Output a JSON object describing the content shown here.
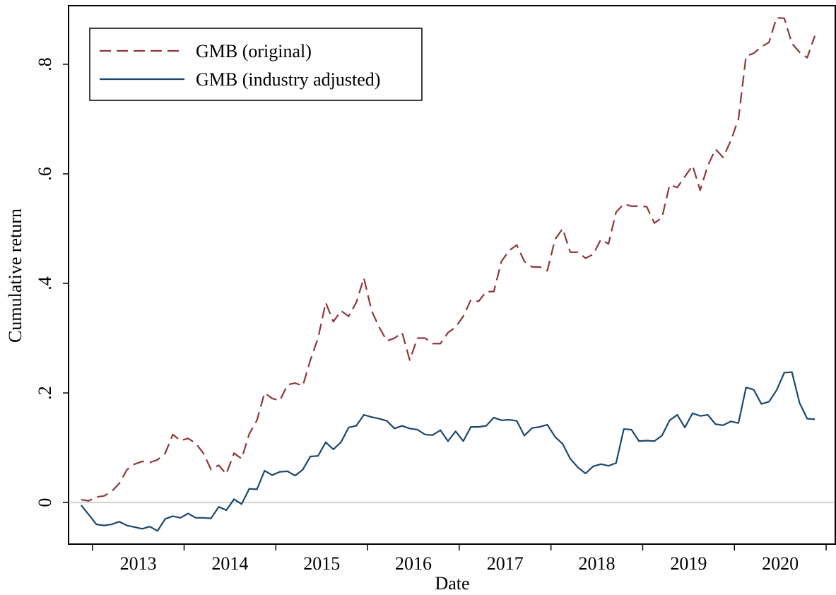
{
  "chart_data": {
    "type": "line",
    "xlabel": "Date",
    "ylabel": "Cumulative return",
    "x": [
      2012.877,
      2012.96,
      2013.044,
      2013.127,
      2013.21,
      2013.294,
      2013.377,
      2013.46,
      2013.544,
      2013.627,
      2013.71,
      2013.794,
      2013.877,
      2013.96,
      2014.044,
      2014.127,
      2014.21,
      2014.294,
      2014.377,
      2014.46,
      2014.544,
      2014.627,
      2014.71,
      2014.794,
      2014.877,
      2014.96,
      2015.044,
      2015.127,
      2015.21,
      2015.294,
      2015.377,
      2015.46,
      2015.544,
      2015.627,
      2015.71,
      2015.794,
      2015.877,
      2015.96,
      2016.044,
      2016.127,
      2016.21,
      2016.294,
      2016.377,
      2016.46,
      2016.544,
      2016.627,
      2016.71,
      2016.794,
      2016.877,
      2016.96,
      2017.044,
      2017.127,
      2017.21,
      2017.294,
      2017.377,
      2017.46,
      2017.544,
      2017.627,
      2017.71,
      2017.794,
      2017.877,
      2017.96,
      2018.044,
      2018.127,
      2018.21,
      2018.294,
      2018.377,
      2018.46,
      2018.544,
      2018.627,
      2018.71,
      2018.794,
      2018.877,
      2018.96,
      2019.044,
      2019.127,
      2019.21,
      2019.294,
      2019.377,
      2019.46,
      2019.544,
      2019.627,
      2019.71,
      2019.794,
      2019.877,
      2019.96,
      2020.044,
      2020.127,
      2020.21,
      2020.294,
      2020.377,
      2020.46,
      2020.544,
      2020.627,
      2020.71,
      2020.794,
      2020.877
    ],
    "series": [
      {
        "name": "GMB (original)",
        "color": "#90353b",
        "dash": true,
        "values": [
          0.005,
          0.003,
          0.01,
          0.012,
          0.02,
          0.035,
          0.06,
          0.07,
          0.075,
          0.073,
          0.078,
          0.09,
          0.124,
          0.113,
          0.117,
          0.108,
          0.09,
          0.06,
          0.068,
          0.052,
          0.09,
          0.08,
          0.125,
          0.15,
          0.2,
          0.19,
          0.186,
          0.215,
          0.218,
          0.213,
          0.26,
          0.3,
          0.365,
          0.33,
          0.35,
          0.34,
          0.365,
          0.41,
          0.35,
          0.32,
          0.295,
          0.3,
          0.31,
          0.26,
          0.3,
          0.3,
          0.29,
          0.29,
          0.31,
          0.32,
          0.34,
          0.37,
          0.367,
          0.385,
          0.385,
          0.44,
          0.46,
          0.47,
          0.44,
          0.43,
          0.43,
          0.423,
          0.48,
          0.5,
          0.457,
          0.457,
          0.446,
          0.453,
          0.48,
          0.472,
          0.53,
          0.545,
          0.541,
          0.541,
          0.54,
          0.51,
          0.52,
          0.58,
          0.575,
          0.595,
          0.615,
          0.57,
          0.615,
          0.645,
          0.63,
          0.66,
          0.7,
          0.815,
          0.82,
          0.832,
          0.84,
          0.885,
          0.884,
          0.838,
          0.822,
          0.812,
          0.852
        ]
      },
      {
        "name": "GMB (industry adjusted)",
        "color": "#1a476f",
        "dash": false,
        "values": [
          -0.005,
          -0.022,
          -0.04,
          -0.042,
          -0.04,
          -0.035,
          -0.042,
          -0.045,
          -0.048,
          -0.044,
          -0.052,
          -0.03,
          -0.025,
          -0.028,
          -0.02,
          -0.028,
          -0.028,
          -0.029,
          -0.008,
          -0.014,
          0.006,
          -0.003,
          0.025,
          0.024,
          0.058,
          0.05,
          0.056,
          0.057,
          0.049,
          0.06,
          0.084,
          0.085,
          0.11,
          0.097,
          0.11,
          0.137,
          0.14,
          0.16,
          0.156,
          0.153,
          0.149,
          0.135,
          0.14,
          0.135,
          0.133,
          0.124,
          0.123,
          0.132,
          0.112,
          0.13,
          0.112,
          0.138,
          0.138,
          0.14,
          0.155,
          0.15,
          0.151,
          0.149,
          0.122,
          0.136,
          0.138,
          0.142,
          0.12,
          0.107,
          0.08,
          0.064,
          0.053,
          0.066,
          0.07,
          0.067,
          0.072,
          0.134,
          0.133,
          0.112,
          0.113,
          0.112,
          0.122,
          0.15,
          0.16,
          0.137,
          0.163,
          0.158,
          0.16,
          0.143,
          0.141,
          0.148,
          0.145,
          0.21,
          0.206,
          0.18,
          0.184,
          0.205,
          0.237,
          0.238,
          0.182,
          0.153,
          0.152
        ]
      }
    ],
    "xlim": [
      2012.74,
      2021.1
    ],
    "xtick_marks": [
      2013,
      2014,
      2015,
      2016,
      2017,
      2018,
      2019,
      2020,
      2021
    ],
    "xticks": [
      {
        "value": 2013.5,
        "label": "2013"
      },
      {
        "value": 2014.5,
        "label": "2014"
      },
      {
        "value": 2015.5,
        "label": "2015"
      },
      {
        "value": 2016.5,
        "label": "2016"
      },
      {
        "value": 2017.5,
        "label": "2017"
      },
      {
        "value": 2018.5,
        "label": "2018"
      },
      {
        "value": 2019.5,
        "label": "2019"
      },
      {
        "value": 2020.5,
        "label": "2020"
      }
    ],
    "ylim": [
      -0.076,
      0.907
    ],
    "yticks": [
      0,
      {
        "value": 0.2,
        "label": ".2"
      },
      {
        "value": 0.4,
        "label": ".4"
      },
      {
        "value": 0.6,
        "label": ".6"
      },
      {
        "value": 0.8,
        "label": ".8"
      }
    ],
    "zero_line": true,
    "legend": "top-left"
  }
}
